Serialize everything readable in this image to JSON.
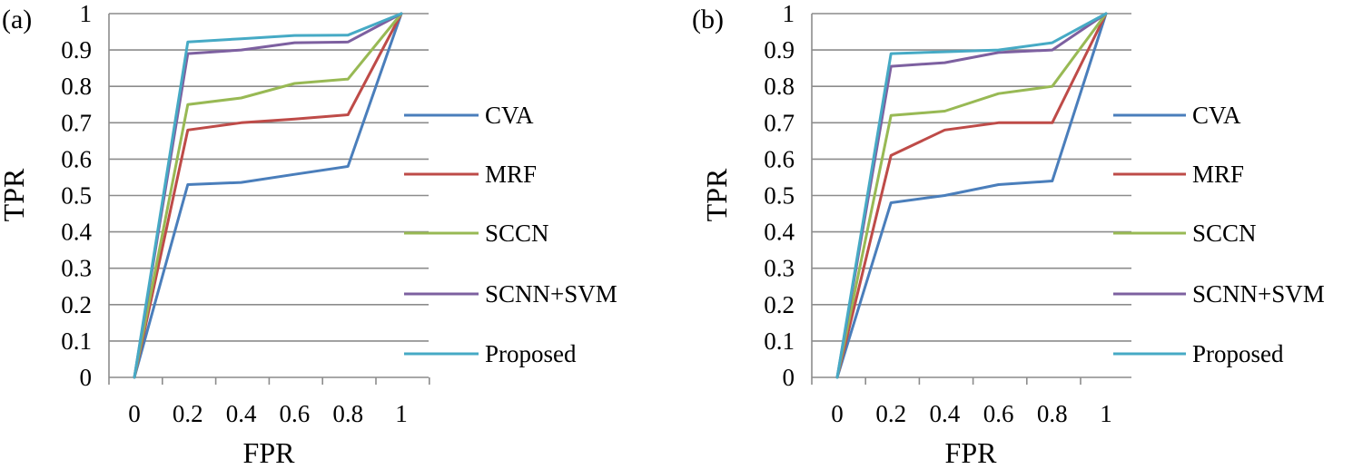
{
  "chart_data": [
    {
      "type": "line",
      "panel_label": "(a)",
      "xlabel": "FPR",
      "ylabel": "TPR",
      "x": [
        0,
        0.2,
        0.4,
        0.6,
        0.8,
        1
      ],
      "x_tick_labels": [
        "0",
        "0.2",
        "0.4",
        "0.6",
        "0.8",
        "1"
      ],
      "y_tick_labels": [
        "0",
        "0.1",
        "0.2",
        "0.3",
        "0.4",
        "0.5",
        "0.6",
        "0.7",
        "0.8",
        "0.9",
        "1"
      ],
      "ylim": [
        0,
        1
      ],
      "grid": "horizontal",
      "legend_position": "right",
      "series": [
        {
          "name": "CVA",
          "color": "#4a7ebb",
          "values": [
            0,
            0.53,
            0.536,
            0.558,
            0.58,
            1
          ]
        },
        {
          "name": "MRF",
          "color": "#be4b48",
          "values": [
            0,
            0.68,
            0.7,
            0.71,
            0.722,
            1
          ]
        },
        {
          "name": "SCCN",
          "color": "#98b954",
          "values": [
            0,
            0.75,
            0.768,
            0.808,
            0.82,
            1
          ]
        },
        {
          "name": "SCNN+SVM",
          "color": "#7d60a0",
          "values": [
            0,
            0.89,
            0.9,
            0.92,
            0.922,
            1
          ]
        },
        {
          "name": "Proposed",
          "color": "#46aac5",
          "values": [
            0,
            0.922,
            0.931,
            0.94,
            0.941,
            1
          ]
        }
      ]
    },
    {
      "type": "line",
      "panel_label": "(b)",
      "xlabel": "FPR",
      "ylabel": "TPR",
      "x": [
        0,
        0.2,
        0.4,
        0.6,
        0.8,
        1
      ],
      "x_tick_labels": [
        "0",
        "0.2",
        "0.4",
        "0.6",
        "0.8",
        "1"
      ],
      "y_tick_labels": [
        "0",
        "0.1",
        "0.2",
        "0.3",
        "0.4",
        "0.5",
        "0.6",
        "0.7",
        "0.8",
        "0.9",
        "1"
      ],
      "ylim": [
        0,
        1
      ],
      "grid": "horizontal",
      "legend_position": "right",
      "series": [
        {
          "name": "CVA",
          "color": "#4a7ebb",
          "values": [
            0,
            0.48,
            0.5,
            0.53,
            0.54,
            1
          ]
        },
        {
          "name": "MRF",
          "color": "#be4b48",
          "values": [
            0,
            0.61,
            0.68,
            0.7,
            0.7,
            1
          ]
        },
        {
          "name": "SCCN",
          "color": "#98b954",
          "values": [
            0,
            0.72,
            0.732,
            0.78,
            0.8,
            1
          ]
        },
        {
          "name": "SCNN+SVM",
          "color": "#7d60a0",
          "values": [
            0,
            0.855,
            0.865,
            0.893,
            0.9,
            1
          ]
        },
        {
          "name": "Proposed",
          "color": "#46aac5",
          "values": [
            0,
            0.89,
            0.895,
            0.9,
            0.92,
            1
          ]
        }
      ]
    }
  ]
}
